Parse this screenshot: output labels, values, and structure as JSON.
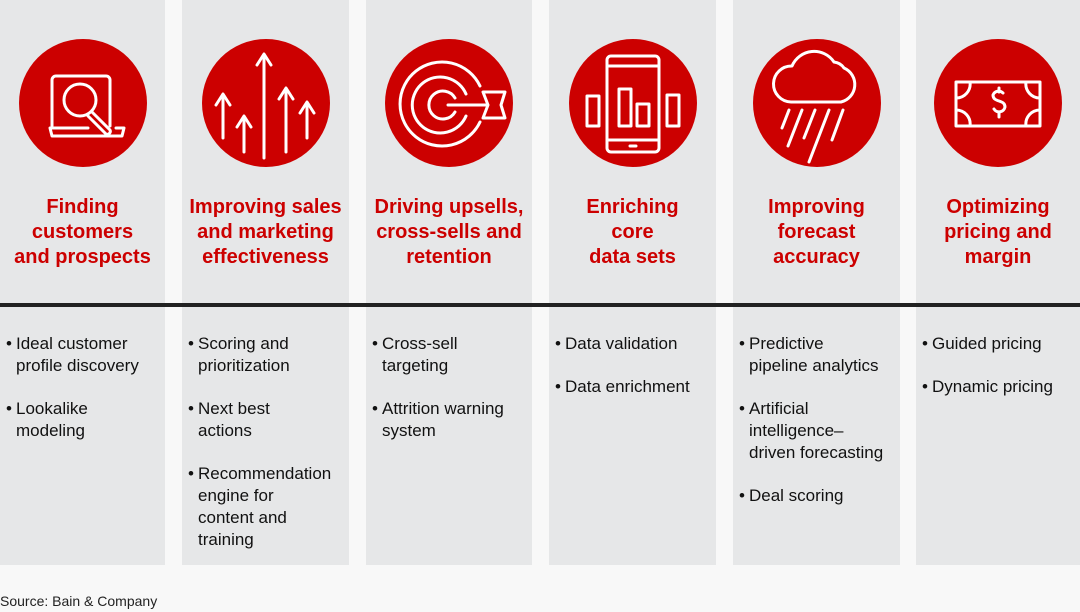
{
  "colors": {
    "accent": "#cc0000",
    "panel": "#e6e7e8"
  },
  "columns": [
    {
      "icon": "laptop-search-icon",
      "title": [
        "Finding",
        "customers",
        "and prospects"
      ],
      "bullets": [
        [
          "Ideal customer",
          "profile discovery"
        ],
        [
          "Lookalike",
          "modeling"
        ]
      ]
    },
    {
      "icon": "rising-arrows-icon",
      "title": [
        "Improving sales",
        "and marketing",
        "effectiveness"
      ],
      "bullets": [
        [
          "Scoring and",
          "prioritization"
        ],
        [
          "Next best",
          "actions"
        ],
        [
          "Recommendation",
          "engine for",
          "content and",
          "training"
        ]
      ]
    },
    {
      "icon": "target-arrow-icon",
      "title": [
        "Driving upsells,",
        "cross-sells and",
        "retention"
      ],
      "bullets": [
        [
          "Cross-sell",
          "targeting"
        ],
        [
          "Attrition warning",
          "system"
        ]
      ]
    },
    {
      "icon": "phone-chart-icon",
      "title": [
        "Enriching",
        "core",
        "data sets"
      ],
      "bullets": [
        [
          "Data validation"
        ],
        [
          "Data enrichment"
        ]
      ]
    },
    {
      "icon": "rain-cloud-icon",
      "title": [
        "Improving",
        "forecast",
        "accuracy"
      ],
      "bullets": [
        [
          "Predictive",
          "pipeline analytics"
        ],
        [
          "Artificial",
          "intelligence–",
          "driven forecasting"
        ],
        [
          "Deal scoring"
        ]
      ]
    },
    {
      "icon": "dollar-bill-icon",
      "title": [
        "Optimizing",
        "pricing and",
        "margin"
      ],
      "bullets": [
        [
          "Guided pricing"
        ],
        [
          "Dynamic pricing"
        ]
      ]
    }
  ],
  "source": "Source: Bain & Company"
}
